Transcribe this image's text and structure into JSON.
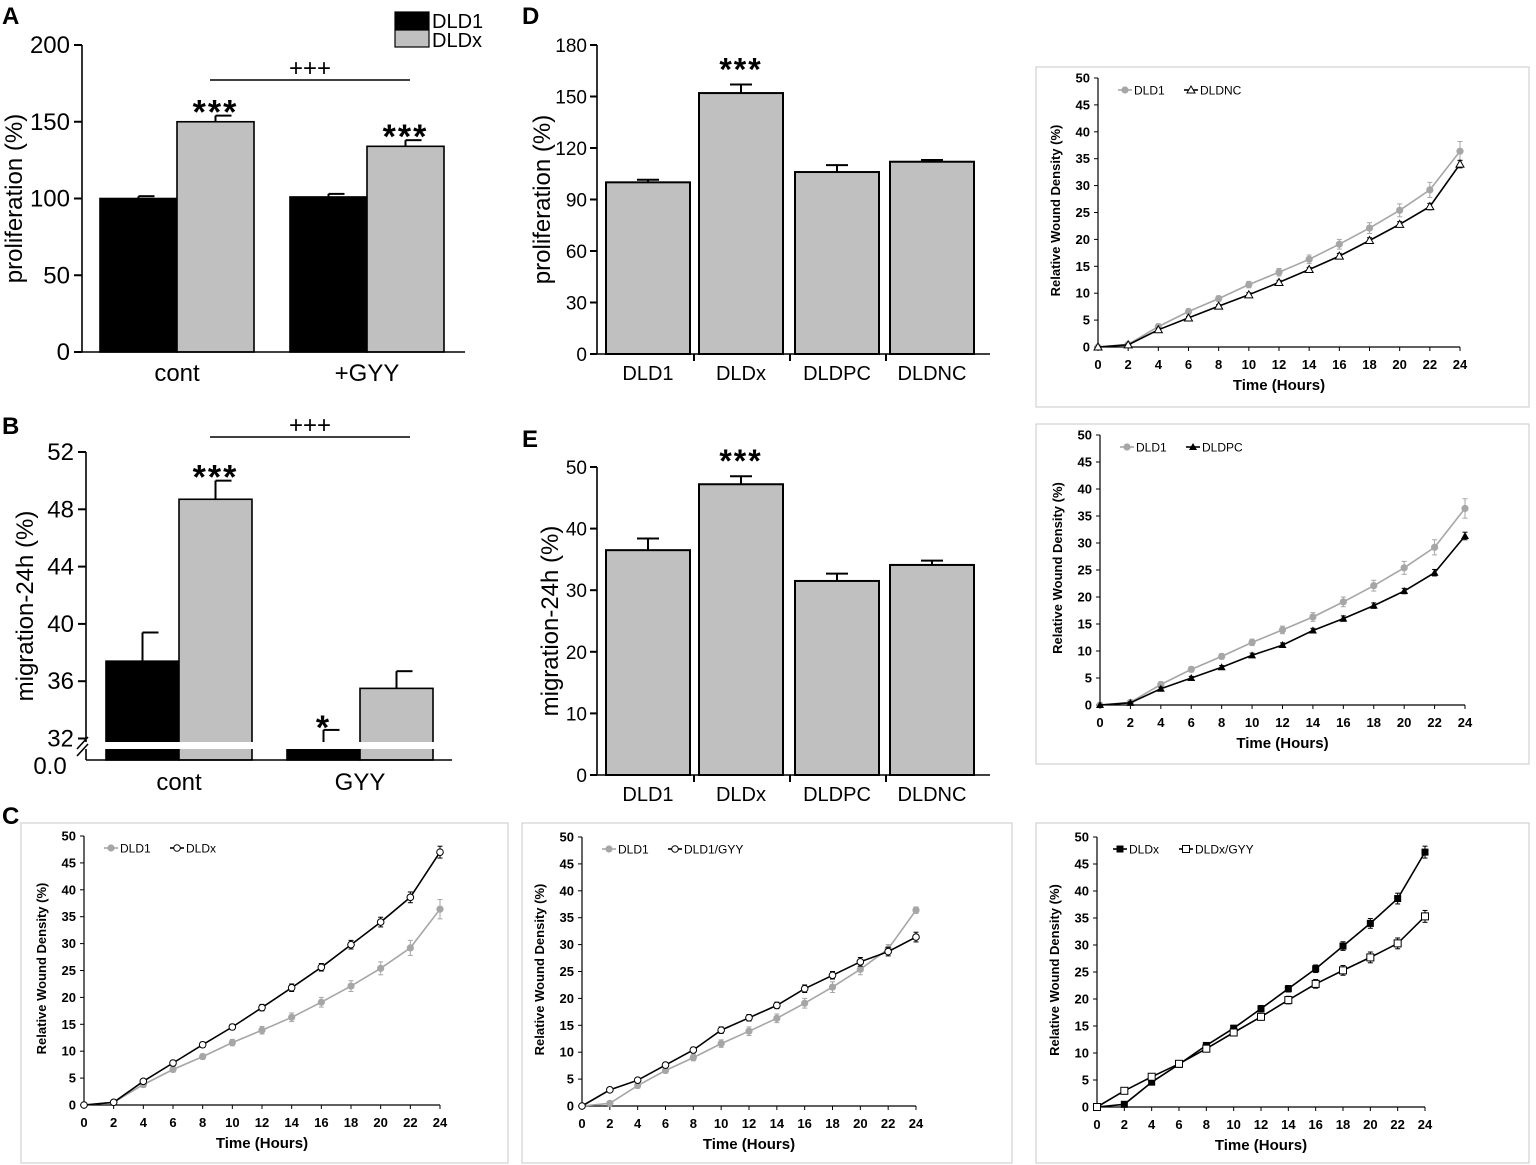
{
  "panel_labels": {
    "A": "A",
    "B": "B",
    "C": "C",
    "D": "D",
    "E": "E"
  },
  "colors": {
    "dld1": "#000000",
    "dldx": "#c0c0c0",
    "bar_gray": "#c0c0c0",
    "line_gray": "#a6a6a6",
    "line_black": "#000000"
  },
  "chart_data": [
    {
      "id": "A",
      "type": "bar",
      "ylabel": "proliferation (%)",
      "ylim": [
        0,
        200
      ],
      "yticks": [
        "0",
        "50",
        "100",
        "150",
        "200"
      ],
      "ytick_values": [
        0,
        50,
        100,
        150,
        200
      ],
      "categories": [
        "cont",
        "+GYY"
      ],
      "series": [
        {
          "name": "DLD1",
          "values": [
            100,
            101
          ],
          "errors": [
            1.5,
            2
          ]
        },
        {
          "name": "DLDx",
          "values": [
            150,
            134
          ],
          "errors": [
            4,
            4
          ]
        }
      ],
      "legend": [
        "DLD1",
        "DLDx"
      ],
      "annotations": [
        {
          "text": "***",
          "category": 0,
          "series": 1
        },
        {
          "text": "***",
          "category": 1,
          "series": 1
        },
        {
          "text": "+++",
          "bracket": [
            0,
            1
          ]
        }
      ]
    },
    {
      "id": "B",
      "type": "bar",
      "ylabel": "migration-24h (%)",
      "ylim": [
        30.5,
        52
      ],
      "yticks": [
        "32",
        "36",
        "40",
        "44",
        "48",
        "52"
      ],
      "ytick_values": [
        32,
        36,
        40,
        44,
        48,
        52
      ],
      "axis_break": true,
      "zero_label": "0.0",
      "categories": [
        "cont",
        "GYY"
      ],
      "series": [
        {
          "name": "DLD1",
          "values": [
            37.4,
            31.7
          ],
          "errors": [
            2,
            0.9
          ]
        },
        {
          "name": "DLDx",
          "values": [
            48.7,
            35.5
          ],
          "errors": [
            1.3,
            1.2
          ]
        }
      ],
      "annotations": [
        {
          "text": "***",
          "category": 0,
          "series": 1
        },
        {
          "text": "*",
          "category": 1,
          "series": 0
        },
        {
          "text": "+++",
          "bracket": [
            0,
            1
          ]
        }
      ]
    },
    {
      "id": "C1",
      "type": "line",
      "xlabel": "Time (Hours)",
      "ylabel": "Relative Wound Density (%)",
      "xlim": [
        0,
        24
      ],
      "ylim": [
        0,
        50
      ],
      "x": [
        0,
        2,
        4,
        6,
        8,
        10,
        12,
        14,
        16,
        18,
        20,
        22,
        24
      ],
      "xticks": [
        "0",
        "2",
        "4",
        "6",
        "8",
        "10",
        "12",
        "14",
        "16",
        "18",
        "20",
        "22",
        "24"
      ],
      "yticks": [
        "0",
        "5",
        "10",
        "15",
        "20",
        "25",
        "30",
        "35",
        "40",
        "45",
        "50"
      ],
      "series": [
        {
          "name": "DLD1",
          "values": [
            0,
            0.5,
            3.8,
            6.6,
            9,
            11.6,
            13.9,
            16.3,
            19.1,
            22.1,
            25.4,
            29.2,
            36.4
          ],
          "errors": [
            0,
            0.2,
            0.5,
            0.5,
            0.5,
            0.6,
            0.7,
            0.8,
            0.9,
            1,
            1.2,
            1.4,
            1.8
          ]
        },
        {
          "name": "DLDx",
          "values": [
            0,
            0.5,
            4.4,
            7.8,
            11.2,
            14.5,
            18.1,
            21.8,
            25.6,
            29.8,
            34,
            38.6,
            47
          ],
          "errors": [
            0,
            0.2,
            0.4,
            0.5,
            0.5,
            0.5,
            0.6,
            0.7,
            0.7,
            0.8,
            0.9,
            1,
            1.1
          ]
        }
      ]
    },
    {
      "id": "C2",
      "type": "line",
      "xlabel": "Time (Hours)",
      "ylabel": "Relative Wound Density (%)",
      "xlim": [
        0,
        24
      ],
      "ylim": [
        0,
        50
      ],
      "x": [
        0,
        2,
        4,
        6,
        8,
        10,
        12,
        14,
        16,
        18,
        20,
        22,
        24
      ],
      "xticks": [
        "0",
        "2",
        "4",
        "6",
        "8",
        "10",
        "12",
        "14",
        "16",
        "18",
        "20",
        "22",
        "24"
      ],
      "yticks": [
        "0",
        "5",
        "10",
        "15",
        "20",
        "25",
        "30",
        "35",
        "40",
        "45",
        "50"
      ],
      "series": [
        {
          "name": "DLD1",
          "values": [
            0,
            0.5,
            3.8,
            6.6,
            9,
            11.6,
            13.9,
            16.3,
            19.1,
            22.1,
            25.4,
            29.2,
            36.4
          ],
          "errors": [
            0,
            0.2,
            0.5,
            0.5,
            0.6,
            0.7,
            0.8,
            0.8,
            0.9,
            1,
            1,
            0.8,
            0.6
          ]
        },
        {
          "name": "DLD1/GYY",
          "values": [
            0,
            3,
            4.8,
            7.6,
            10.4,
            14.1,
            16.4,
            18.7,
            21.8,
            24.3,
            26.8,
            28.7,
            31.4
          ],
          "errors": [
            0,
            0.3,
            0.4,
            0.5,
            0.5,
            0.6,
            0.6,
            0.6,
            0.7,
            0.7,
            0.8,
            0.8,
            0.9
          ]
        }
      ]
    },
    {
      "id": "C3",
      "type": "line",
      "xlabel": "Time (Hours)",
      "ylabel": "Relative Wound Density (%)",
      "xlim": [
        0,
        24
      ],
      "ylim": [
        0,
        50
      ],
      "x": [
        0,
        2,
        4,
        6,
        8,
        10,
        12,
        14,
        16,
        18,
        20,
        22,
        24
      ],
      "xticks": [
        "0",
        "2",
        "4",
        "6",
        "8",
        "10",
        "12",
        "14",
        "16",
        "18",
        "20",
        "22",
        "24"
      ],
      "yticks": [
        "0",
        "5",
        "10",
        "15",
        "20",
        "25",
        "30",
        "35",
        "40",
        "45",
        "50"
      ],
      "series": [
        {
          "name": "DLDx",
          "values": [
            0,
            0.5,
            4.6,
            7.9,
            11.4,
            14.6,
            18.2,
            21.9,
            25.6,
            29.8,
            34,
            38.6,
            47.2
          ],
          "errors": [
            0,
            0.2,
            0.4,
            0.5,
            0.5,
            0.5,
            0.6,
            0.6,
            0.7,
            0.8,
            0.9,
            1,
            1.1
          ]
        },
        {
          "name": "DLDx/GYY",
          "values": [
            0,
            3,
            5.6,
            8,
            10.8,
            13.8,
            16.7,
            19.8,
            22.8,
            25.3,
            27.7,
            30.3,
            35.3
          ],
          "errors": [
            0,
            0.3,
            0.4,
            0.5,
            0.5,
            0.6,
            0.6,
            0.7,
            0.8,
            0.9,
            1,
            1,
            1.1
          ]
        }
      ]
    },
    {
      "id": "D",
      "type": "bar",
      "ylabel": "proliferation (%)",
      "ylim": [
        0,
        180
      ],
      "yticks": [
        "0",
        "30",
        "60",
        "90",
        "120",
        "150",
        "180"
      ],
      "ytick_values": [
        0,
        30,
        60,
        90,
        120,
        150,
        180
      ],
      "categories": [
        "DLD1",
        "DLDx",
        "DLDPC",
        "DLDNC"
      ],
      "values": [
        100,
        152,
        106,
        112
      ],
      "errors": [
        1.5,
        5,
        4,
        1
      ],
      "annotations": [
        {
          "text": "***",
          "category": 1
        }
      ]
    },
    {
      "id": "D2",
      "type": "line",
      "xlabel": "Time (Hours)",
      "ylabel": "Relative Wound Density (%)",
      "xlim": [
        0,
        24
      ],
      "ylim": [
        0,
        50
      ],
      "x": [
        0,
        2,
        4,
        6,
        8,
        10,
        12,
        14,
        16,
        18,
        20,
        22,
        24
      ],
      "xticks": [
        "0",
        "2",
        "4",
        "6",
        "8",
        "10",
        "12",
        "14",
        "16",
        "18",
        "20",
        "22",
        "24"
      ],
      "yticks": [
        "0",
        "5",
        "10",
        "15",
        "20",
        "25",
        "30",
        "35",
        "40",
        "45",
        "50"
      ],
      "series": [
        {
          "name": "DLD1",
          "values": [
            0,
            0.5,
            3.8,
            6.6,
            9,
            11.6,
            13.9,
            16.3,
            19.1,
            22.1,
            25.4,
            29.2,
            36.4
          ],
          "errors": [
            0,
            0.2,
            0.5,
            0.5,
            0.5,
            0.6,
            0.7,
            0.8,
            0.9,
            1,
            1.2,
            1.4,
            1.8
          ]
        },
        {
          "name": "DLDNC",
          "values": [
            0,
            0.4,
            3.2,
            5.4,
            7.6,
            9.7,
            12,
            14.4,
            16.9,
            19.8,
            22.8,
            26.1,
            34
          ],
          "errors": [
            0,
            0.2,
            0.3,
            0.3,
            0.3,
            0.4,
            0.4,
            0.4,
            0.5,
            0.5,
            0.5,
            0.6,
            0.7
          ]
        }
      ]
    },
    {
      "id": "E",
      "type": "bar",
      "ylabel": "migration-24h (%)",
      "ylim": [
        0,
        50
      ],
      "yticks": [
        "0",
        "10",
        "20",
        "30",
        "40",
        "50"
      ],
      "ytick_values": [
        0,
        10,
        20,
        30,
        40,
        50
      ],
      "categories": [
        "DLD1",
        "DLDx",
        "DLDPC",
        "DLDNC"
      ],
      "values": [
        36.5,
        47.2,
        31.5,
        34.1
      ],
      "errors": [
        1.9,
        1.3,
        1.2,
        0.7
      ],
      "annotations": [
        {
          "text": "***",
          "category": 1
        }
      ]
    },
    {
      "id": "E2",
      "type": "line",
      "xlabel": "Time (Hours)",
      "ylabel": "Relative Wound Density (%)",
      "xlim": [
        0,
        24
      ],
      "ylim": [
        0,
        50
      ],
      "x": [
        0,
        2,
        4,
        6,
        8,
        10,
        12,
        14,
        16,
        18,
        20,
        22,
        24
      ],
      "xticks": [
        "0",
        "2",
        "4",
        "6",
        "8",
        "10",
        "12",
        "14",
        "16",
        "18",
        "20",
        "22",
        "24"
      ],
      "yticks": [
        "0",
        "5",
        "10",
        "15",
        "20",
        "25",
        "30",
        "35",
        "40",
        "45",
        "50"
      ],
      "series": [
        {
          "name": "DLD1",
          "values": [
            0,
            0.5,
            3.8,
            6.6,
            9,
            11.6,
            13.9,
            16.3,
            19.1,
            22.1,
            25.4,
            29.2,
            36.4
          ],
          "errors": [
            0,
            0.2,
            0.5,
            0.5,
            0.5,
            0.6,
            0.7,
            0.8,
            0.9,
            1,
            1.2,
            1.4,
            1.8
          ]
        },
        {
          "name": "DLDPC",
          "values": [
            0,
            0.4,
            3,
            5,
            7,
            9.2,
            11.1,
            13.8,
            16,
            18.4,
            21.1,
            24.5,
            31.3
          ],
          "errors": [
            0,
            0.2,
            0.3,
            0.3,
            0.3,
            0.4,
            0.4,
            0.4,
            0.5,
            0.5,
            0.5,
            0.6,
            0.7
          ]
        }
      ]
    }
  ]
}
